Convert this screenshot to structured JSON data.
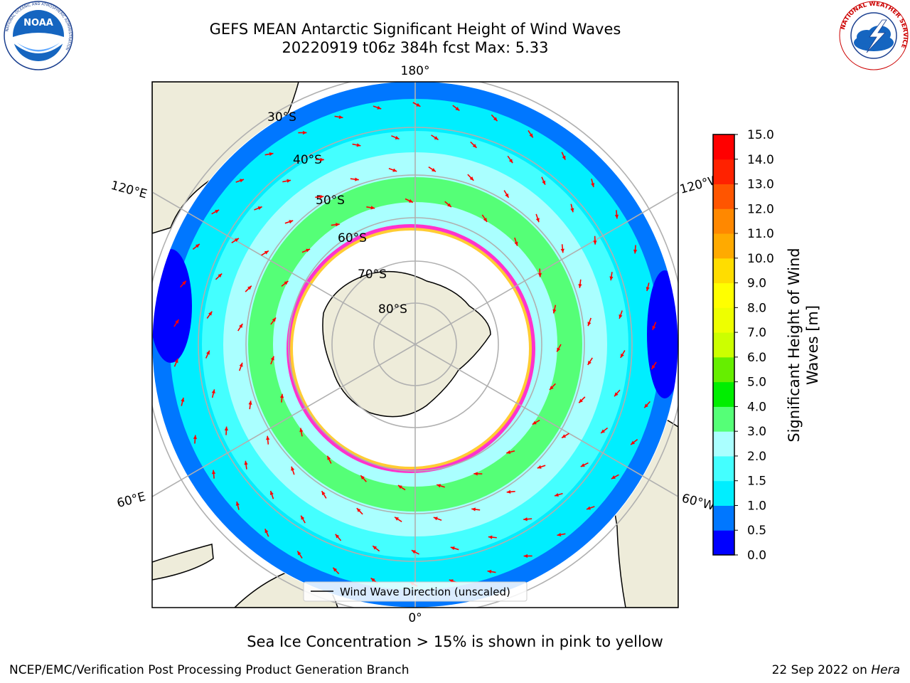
{
  "header": {
    "title_line1": "GEFS MEAN Antarctic Significant Height of Wind Waves",
    "title_line2": "20220919 t06z 384h fcst   Max: 5.33"
  },
  "logos": {
    "left": "NOAA",
    "left_ring_top": "NATIONAL OCEANIC AND ATMOSPHERIC ADMINISTRATION",
    "left_ring_bottom": "U.S. DEPARTMENT OF COMMERCE",
    "right_ring": "NATIONAL WEATHER SERVICE"
  },
  "map": {
    "projection": "south-polar-stereographic",
    "longitude_labels": {
      "top": "180°",
      "bottom": "0°",
      "left_upper": "120°E",
      "left_lower": "60°E",
      "right_upper": "120°W",
      "right_lower": "60°W"
    },
    "latitude_labels": [
      "30°S",
      "40°S",
      "50°S",
      "60°S",
      "70°S",
      "80°S"
    ],
    "legend_label": "Wind Wave Direction (unscaled)",
    "colors": {
      "land": "#eeecda",
      "ice_edge": "#ff33cc",
      "arrows": "#ff0000",
      "grid": "#b0b0b0"
    }
  },
  "colorbar": {
    "title": "Significant Height of Wind Waves [m]",
    "ticks": [
      "0.0",
      "0.5",
      "1.0",
      "1.5",
      "2.0",
      "3.0",
      "4.0",
      "5.0",
      "6.0",
      "7.0",
      "8.0",
      "9.0",
      "10.0",
      "11.0",
      "12.0",
      "13.0",
      "14.0",
      "15.0"
    ],
    "colors": [
      "#0000ff",
      "#0077ff",
      "#00eeff",
      "#44ffff",
      "#aaffff",
      "#55ff77",
      "#00ee00",
      "#66ee00",
      "#ccff00",
      "#eeff00",
      "#ffff00",
      "#ffdd00",
      "#ffaa00",
      "#ff8800",
      "#ff5500",
      "#ff2200",
      "#ff0000"
    ]
  },
  "footer": {
    "note": "Sea Ice Concentration > 15% is shown in pink to yellow",
    "left": "NCEP/EMC/Verification Post Processing Product Generation Branch",
    "right_date": "22 Sep 2022 on",
    "right_machine": "Hera"
  }
}
